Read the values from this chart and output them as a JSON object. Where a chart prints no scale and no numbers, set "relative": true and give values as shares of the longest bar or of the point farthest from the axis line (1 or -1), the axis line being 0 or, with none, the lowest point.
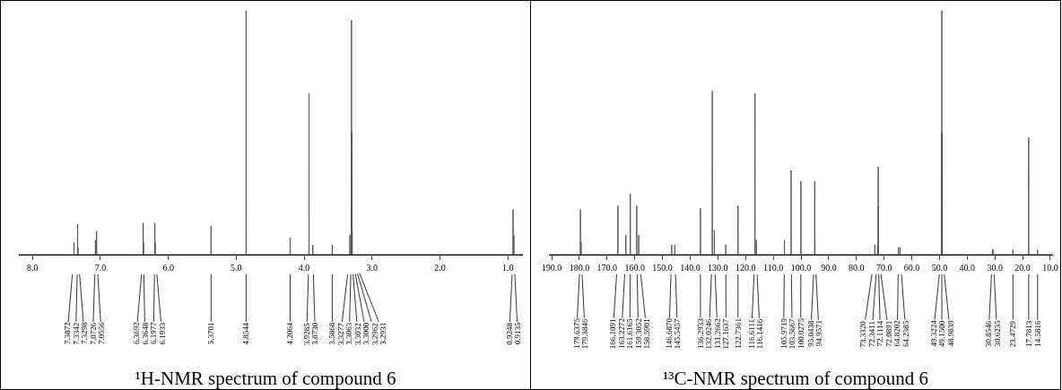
{
  "chart_data": [
    {
      "type": "line",
      "relative": true,
      "title": "¹H-NMR spectrum of compound 6",
      "color": "#555555",
      "grid": false,
      "tick_labels": "x",
      "xlim": [
        8.2,
        0.78
      ],
      "xticks": [
        {
          "value": 8,
          "label": "8.0"
        },
        {
          "value": 7,
          "label": "7.0"
        },
        {
          "value": 6,
          "label": "6.0"
        },
        {
          "value": 5,
          "label": "5.0"
        },
        {
          "value": 4,
          "label": "4.0"
        },
        {
          "value": 3,
          "label": "3.0"
        },
        {
          "value": 2,
          "label": "2.0"
        },
        {
          "value": 1,
          "label": "1.0"
        }
      ],
      "x": [
        8.2,
        7.3884,
        7.3872,
        7.386,
        7.3354,
        7.3342,
        7.333,
        7.331,
        7.3298,
        7.3286,
        7.0738,
        7.0726,
        7.0714,
        7.0568,
        7.0556,
        7.0544,
        6.3704,
        6.3692,
        6.368,
        6.366,
        6.3648,
        6.3636,
        6.1989,
        6.1977,
        6.1965,
        6.1945,
        6.1933,
        6.1921,
        5.3713,
        5.3701,
        5.3689,
        4.8556,
        4.8544,
        4.8532,
        4.2076,
        4.2064,
        4.2052,
        3.9297,
        3.9285,
        3.9273,
        3.8742,
        3.873,
        3.8718,
        3.588,
        3.5868,
        3.5856,
        3.3289,
        3.3277,
        3.3265,
        3.3075,
        3.3063,
        3.3051,
        3.3044,
        3.3032,
        3.302,
        3.3012,
        3.3,
        3.2988,
        3.2974,
        3.2962,
        3.295,
        3.2943,
        3.2931,
        3.2919,
        0.926,
        0.9248,
        0.9236,
        0.9147,
        0.9135,
        0.9123,
        0.78
      ],
      "values": [
        0,
        0,
        0.05,
        0,
        0,
        0.125,
        0,
        0,
        0.03,
        0,
        0,
        0.06,
        0,
        0,
        0.096,
        0,
        0,
        0.13,
        0,
        0,
        0.05,
        0,
        0,
        0.13,
        0,
        0,
        0.05,
        0,
        0,
        0.117,
        0,
        0,
        1,
        0,
        0,
        0.07,
        0,
        0,
        0.66,
        0,
        0,
        0.04,
        0,
        0,
        0.04,
        0,
        0,
        0.08,
        0,
        0,
        0.3,
        0,
        0,
        0.96,
        0,
        0,
        0.5,
        0,
        0,
        0.2,
        0,
        0,
        0.1,
        0,
        0,
        0.185,
        0,
        0,
        0.08,
        0,
        0
      ],
      "annotations": [
        {
          "text": "7.3872",
          "x": 7.3872
        },
        {
          "text": "7.3342",
          "x": 7.3342
        },
        {
          "text": "7.3298",
          "x": 7.3298
        },
        {
          "text": "7.0726",
          "x": 7.0726
        },
        {
          "text": "7.0556",
          "x": 7.0556
        },
        {
          "text": "6.3692",
          "x": 6.3692
        },
        {
          "text": "6.3648",
          "x": 6.3648
        },
        {
          "text": "6.1977",
          "x": 6.1977
        },
        {
          "text": "6.1933",
          "x": 6.1933
        },
        {
          "text": "5.3701",
          "x": 5.3701
        },
        {
          "text": "4.8544",
          "x": 4.8544
        },
        {
          "text": "4.2064",
          "x": 4.2064
        },
        {
          "text": "3.9285",
          "x": 3.9285
        },
        {
          "text": "3.8730",
          "x": 3.873
        },
        {
          "text": "3.5868",
          "x": 3.5868
        },
        {
          "text": "3.3277",
          "x": 3.3277
        },
        {
          "text": "3.3063",
          "x": 3.3063
        },
        {
          "text": "3.3032",
          "x": 3.3032
        },
        {
          "text": "3.3000",
          "x": 3.3
        },
        {
          "text": "3.2962",
          "x": 3.2962
        },
        {
          "text": "3.2931",
          "x": 3.2931
        },
        {
          "text": "0.9248",
          "x": 0.9248
        },
        {
          "text": "0.9135",
          "x": 0.9135
        }
      ]
    },
    {
      "type": "line",
      "relative": true,
      "title": "¹³C-NMR spectrum of compound 6",
      "color": "#555555",
      "grid": false,
      "tick_labels": "x",
      "xlim": [
        191,
        9
      ],
      "xticks": [
        {
          "value": 190,
          "label": "190.0"
        },
        {
          "value": 180,
          "label": "180.0"
        },
        {
          "value": 170,
          "label": "170.0"
        },
        {
          "value": 160,
          "label": "160.0"
        },
        {
          "value": 150,
          "label": "150.0"
        },
        {
          "value": 140,
          "label": "140.0"
        },
        {
          "value": 130,
          "label": "130.0"
        },
        {
          "value": 120,
          "label": "120.0"
        },
        {
          "value": 110,
          "label": "110.0"
        },
        {
          "value": 100,
          "label": "100.0"
        },
        {
          "value": 90,
          "label": "90.0"
        },
        {
          "value": 80,
          "label": "80.0"
        },
        {
          "value": 70,
          "label": "70.0"
        },
        {
          "value": 60,
          "label": "60.0"
        },
        {
          "value": 50,
          "label": "50.0"
        },
        {
          "value": 40,
          "label": "40.0"
        },
        {
          "value": 30,
          "label": "30.0"
        },
        {
          "value": 20,
          "label": "20.0"
        },
        {
          "value": 10,
          "label": "10.0"
        }
      ],
      "x": [
        191,
        179.6475,
        179.6375,
        179.6275,
        179.3946,
        179.3846,
        179.3746,
        166.1191,
        166.1091,
        166.0991,
        163.2372,
        163.2272,
        163.2172,
        161.6265,
        161.6165,
        161.6065,
        159.3152,
        159.3052,
        159.2952,
        158.6001,
        158.5901,
        158.5801,
        146.697,
        146.687,
        146.677,
        145.5557,
        145.5457,
        145.5357,
        136.3033,
        136.2933,
        136.2833,
        132.0346,
        132.0246,
        132.0146,
        131.2762,
        131.2662,
        131.2562,
        127.1737,
        127.1637,
        127.1537,
        122.7461,
        122.7361,
        122.7261,
        116.6211,
        116.6111,
        116.6011,
        116.1516,
        116.1416,
        116.1316,
        105.9819,
        105.9719,
        105.9619,
        103.5767,
        103.5667,
        103.5567,
        100.0375,
        100.0275,
        100.0175,
        95.0538,
        95.0438,
        95.0338,
        94.9671,
        94.9571,
        94.9471,
        73.342,
        73.332,
        73.322,
        72.3511,
        72.3411,
        72.3311,
        72.1214,
        72.1114,
        72.1014,
        72.0991,
        72.0891,
        72.0791,
        64.8302,
        64.8202,
        64.8102,
        64.2485,
        64.2385,
        64.2285,
        49.3324,
        49.3224,
        49.3124,
        49.16,
        49.15,
        49.14,
        48.9939,
        48.9839,
        48.9739,
        30.8646,
        30.8546,
        30.8446,
        30.6335,
        30.6235,
        30.6135,
        23.4829,
        23.4729,
        23.4629,
        17.7913,
        17.7813,
        17.7713,
        14.5916,
        14.5816,
        14.5716,
        9
      ],
      "values": [
        0,
        0,
        0.185,
        0,
        0,
        0.05,
        0,
        0,
        0.2,
        0,
        0,
        0.08,
        0,
        0,
        0.25,
        0,
        0,
        0.2,
        0,
        0,
        0.08,
        0,
        0,
        0.04,
        0,
        0,
        0.04,
        0,
        0,
        0.19,
        0,
        0,
        0.67,
        0,
        0,
        0.1,
        0,
        0,
        0.04,
        0,
        0,
        0.2,
        0,
        0,
        0.66,
        0,
        0,
        0.06,
        0,
        0,
        0.06,
        0,
        0,
        0.345,
        0,
        0,
        0.3,
        0,
        0,
        0.3,
        0,
        0,
        0.05,
        0,
        0,
        0.04,
        0,
        0,
        0.04,
        0,
        0,
        0.36,
        0,
        0,
        0.2,
        0,
        0,
        0.03,
        0,
        0,
        0.03,
        0,
        0,
        0.5,
        0,
        0,
        1,
        0,
        0,
        0.5,
        0,
        0,
        0.02,
        0,
        0,
        0.02,
        0,
        0,
        0.02,
        0,
        0,
        0.48,
        0,
        0,
        0.02,
        0,
        0
      ],
      "annotations": [
        {
          "text": "179.6375",
          "x": 179.6375
        },
        {
          "text": "179.3846",
          "x": 179.3846
        },
        {
          "text": "166.1091",
          "x": 166.1091
        },
        {
          "text": "163.2272",
          "x": 163.2272
        },
        {
          "text": "161.6165",
          "x": 161.6165
        },
        {
          "text": "159.3052",
          "x": 159.3052
        },
        {
          "text": "158.5901",
          "x": 158.5901
        },
        {
          "text": "146.6870",
          "x": 146.687
        },
        {
          "text": "145.5457",
          "x": 145.5457
        },
        {
          "text": "136.2933",
          "x": 136.2933
        },
        {
          "text": "132.0246",
          "x": 132.0246
        },
        {
          "text": "131.2662",
          "x": 131.2662
        },
        {
          "text": "127.1637",
          "x": 127.1637
        },
        {
          "text": "122.7361",
          "x": 122.7361
        },
        {
          "text": "116.6111",
          "x": 116.6111
        },
        {
          "text": "116.1416",
          "x": 116.1416
        },
        {
          "text": "105.9719",
          "x": 105.9719
        },
        {
          "text": "103.5667",
          "x": 103.5667
        },
        {
          "text": "100.0275",
          "x": 100.0275
        },
        {
          "text": "95.0438",
          "x": 95.0438
        },
        {
          "text": "94.9571",
          "x": 94.9571
        },
        {
          "text": "73.3320",
          "x": 73.332
        },
        {
          "text": "72.3411",
          "x": 72.3411
        },
        {
          "text": "72.1114",
          "x": 72.1114
        },
        {
          "text": "72.0891",
          "x": 72.0891
        },
        {
          "text": "64.8202",
          "x": 64.8202
        },
        {
          "text": "64.2385",
          "x": 64.2385
        },
        {
          "text": "49.3224",
          "x": 49.3224
        },
        {
          "text": "49.1500",
          "x": 49.15
        },
        {
          "text": "48.9839",
          "x": 48.9839
        },
        {
          "text": "30.8546",
          "x": 30.8546
        },
        {
          "text": "30.6235",
          "x": 30.6235
        },
        {
          "text": "23.4729",
          "x": 23.4729
        },
        {
          "text": "17.7813",
          "x": 17.7813
        },
        {
          "text": "14.5816",
          "x": 14.5816
        }
      ]
    }
  ]
}
